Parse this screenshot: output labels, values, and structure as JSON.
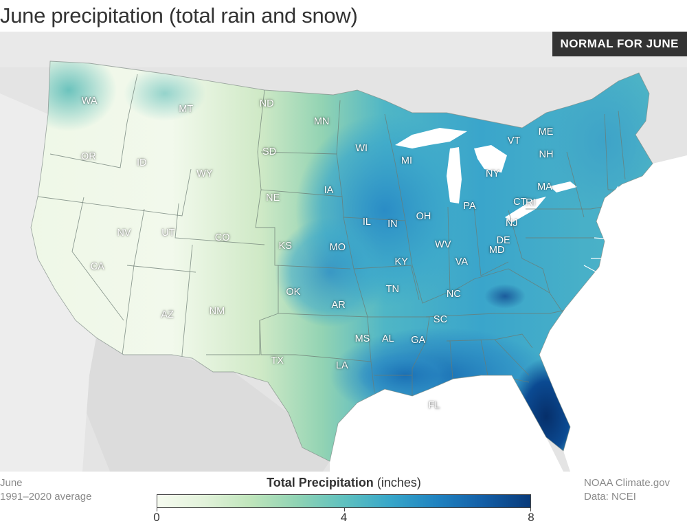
{
  "title": "June precipitation (total rain and snow)",
  "badge": "NORMAL FOR JUNE",
  "states": [
    {
      "abbr": "WA",
      "lon": -120.5,
      "lat": 47.4
    },
    {
      "abbr": "OR",
      "lon": -120.6,
      "lat": 43.9
    },
    {
      "abbr": "CA",
      "lon": -119.6,
      "lat": 37.2
    },
    {
      "abbr": "NV",
      "lon": -116.6,
      "lat": 39.3
    },
    {
      "abbr": "ID",
      "lon": -114.6,
      "lat": 43.6
    },
    {
      "abbr": "MT",
      "lon": -109.6,
      "lat": 47.0
    },
    {
      "abbr": "WY",
      "lon": -107.5,
      "lat": 43.0
    },
    {
      "abbr": "UT",
      "lon": -111.6,
      "lat": 39.3
    },
    {
      "abbr": "AZ",
      "lon": -111.7,
      "lat": 34.2
    },
    {
      "abbr": "CO",
      "lon": -105.5,
      "lat": 39.0
    },
    {
      "abbr": "NM",
      "lon": -106.1,
      "lat": 34.4
    },
    {
      "abbr": "ND",
      "lon": -100.5,
      "lat": 47.4
    },
    {
      "abbr": "SD",
      "lon": -100.2,
      "lat": 44.4
    },
    {
      "abbr": "NE",
      "lon": -99.8,
      "lat": 41.5
    },
    {
      "abbr": "KS",
      "lon": -98.4,
      "lat": 38.5
    },
    {
      "abbr": "OK",
      "lon": -97.5,
      "lat": 35.6
    },
    {
      "abbr": "TX",
      "lon": -99.3,
      "lat": 31.3
    },
    {
      "abbr": "MN",
      "lon": -94.3,
      "lat": 46.3
    },
    {
      "abbr": "IA",
      "lon": -93.5,
      "lat": 42.0
    },
    {
      "abbr": "MO",
      "lon": -92.5,
      "lat": 38.4
    },
    {
      "abbr": "AR",
      "lon": -92.4,
      "lat": 34.8
    },
    {
      "abbr": "LA",
      "lon": -92.0,
      "lat": 31.0
    },
    {
      "abbr": "WI",
      "lon": -89.8,
      "lat": 44.6
    },
    {
      "abbr": "IL",
      "lon": -89.2,
      "lat": 40.0
    },
    {
      "abbr": "MS",
      "lon": -89.7,
      "lat": 32.7
    },
    {
      "abbr": "MI",
      "lon": -84.7,
      "lat": 43.8
    },
    {
      "abbr": "IN",
      "lon": -86.3,
      "lat": 39.9
    },
    {
      "abbr": "OH",
      "lon": -82.8,
      "lat": 40.3
    },
    {
      "abbr": "KY",
      "lon": -85.3,
      "lat": 37.5
    },
    {
      "abbr": "TN",
      "lon": -86.3,
      "lat": 35.8
    },
    {
      "abbr": "AL",
      "lon": -86.8,
      "lat": 32.7
    },
    {
      "abbr": "GA",
      "lon": -83.4,
      "lat": 32.6
    },
    {
      "abbr": "FL",
      "lon": -81.6,
      "lat": 28.5
    },
    {
      "abbr": "SC",
      "lon": -80.9,
      "lat": 33.9
    },
    {
      "abbr": "NC",
      "lon": -79.4,
      "lat": 35.5
    },
    {
      "abbr": "VA",
      "lon": -78.5,
      "lat": 37.5
    },
    {
      "abbr": "WV",
      "lon": -80.6,
      "lat": 38.6
    },
    {
      "abbr": "PA",
      "lon": -77.6,
      "lat": 40.9
    },
    {
      "abbr": "NY",
      "lon": -75.0,
      "lat": 42.9
    },
    {
      "abbr": "VT",
      "lon": -72.6,
      "lat": 44.9
    },
    {
      "abbr": "ME",
      "lon": -69.0,
      "lat": 45.4
    },
    {
      "abbr": "NH",
      "lon": -71.6,
      "lat": 43.7
    },
    {
      "abbr": "MA",
      "lon": -71.6,
      "lat": 42.2
    },
    {
      "abbr": "RI",
      "lon": -71.5,
      "lat": 41.6
    },
    {
      "abbr": "CT",
      "lon": -72.7,
      "lat": 41.6
    },
    {
      "abbr": "NJ",
      "lon": -74.4,
      "lat": 40.1
    },
    {
      "abbr": "DE",
      "lon": -75.5,
      "lat": 39.0
    },
    {
      "abbr": "MD",
      "lon": -76.7,
      "lat": 39.0
    }
  ],
  "footer_left": {
    "line1": "June",
    "line2": "1991–2020 average"
  },
  "footer_right": {
    "line1": "NOAA Climate.gov",
    "line2": "Data: NCEI"
  },
  "legend": {
    "title_bold": "Total Precipitation",
    "title_unit": "(inches)",
    "min": 0,
    "max": 8,
    "ticks": [
      {
        "value": 0,
        "label": "0"
      },
      {
        "value": 4,
        "label": "4"
      },
      {
        "value": 8,
        "label": "8"
      }
    ],
    "color_stops": [
      {
        "value": 0,
        "color": "#f6fbf0"
      },
      {
        "value": 1,
        "color": "#e2f2da"
      },
      {
        "value": 2,
        "color": "#bfe5bb"
      },
      {
        "value": 3,
        "color": "#8fd3b4"
      },
      {
        "value": 4,
        "color": "#5fc1bf"
      },
      {
        "value": 5,
        "color": "#37a6c9"
      },
      {
        "value": 6,
        "color": "#1f82c0"
      },
      {
        "value": 7,
        "color": "#135ea6"
      },
      {
        "value": 8,
        "color": "#083a7a"
      }
    ]
  },
  "colors": {
    "background_land": "#e4e4e4",
    "water": "#ffffff",
    "border": "#6b7b73"
  }
}
